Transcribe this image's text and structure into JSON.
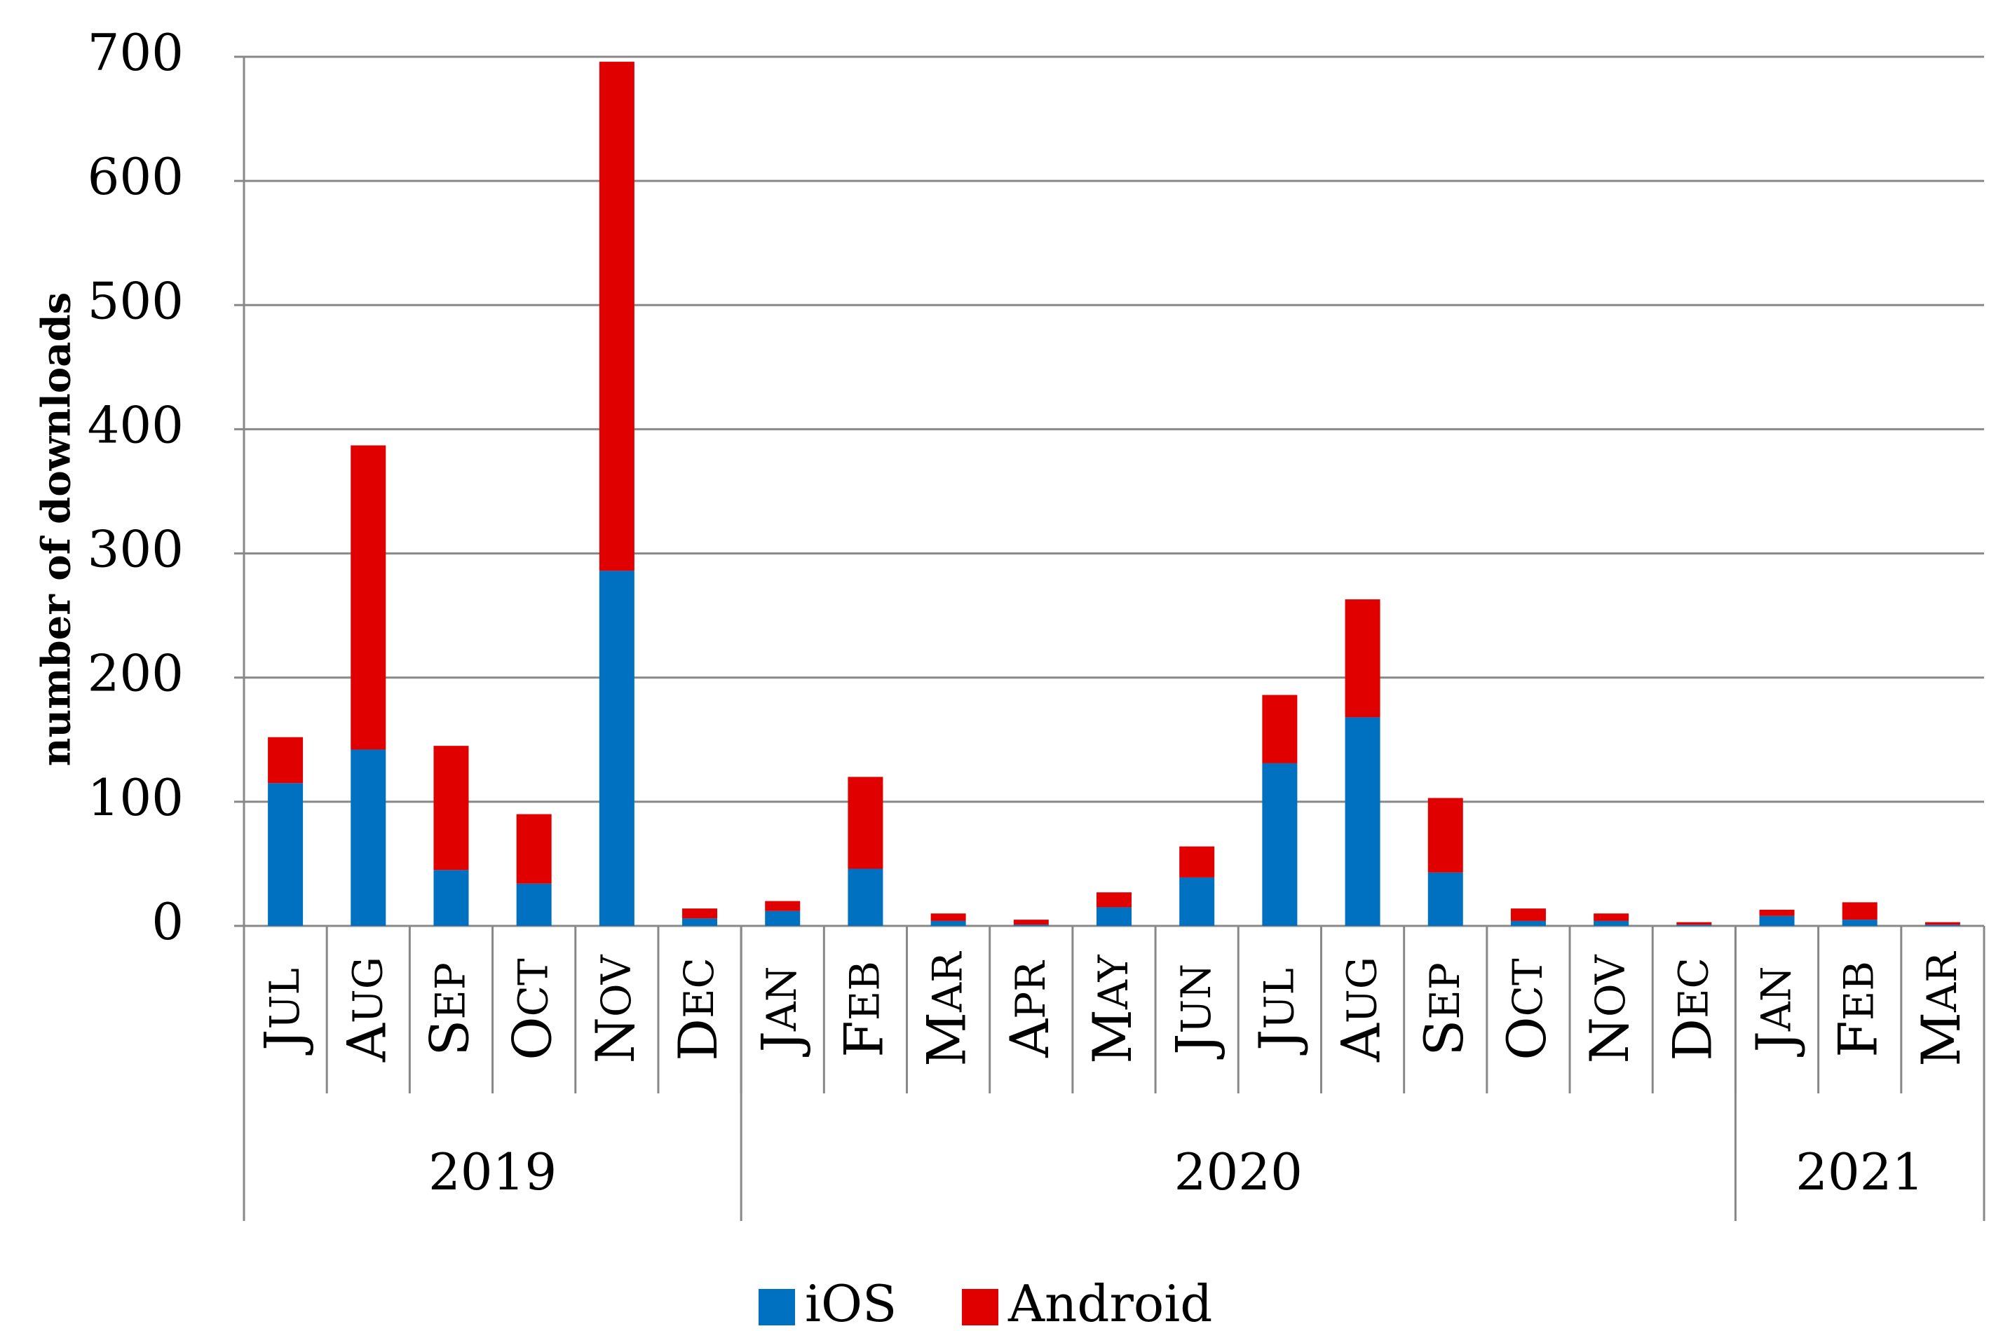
{
  "chart_data": {
    "type": "bar",
    "stacked": true,
    "title": "",
    "xlabel": "",
    "ylabel": "number of downloads",
    "ylim": [
      0,
      700
    ],
    "yticks": [
      0,
      100,
      200,
      300,
      400,
      500,
      600,
      700
    ],
    "ytick_labels": [
      "0",
      "100",
      "200",
      "300",
      "400",
      "500",
      "600",
      "700"
    ],
    "grid": true,
    "categories": [
      "Jul",
      "Aug",
      "Sep",
      "Oct",
      "Nov",
      "Dec",
      "Jan",
      "Feb",
      "Mar",
      "Apr",
      "May",
      "Jun",
      "Jul",
      "Aug",
      "Sep",
      "Oct",
      "Nov",
      "Dec",
      "Jan",
      "Feb",
      "Mar"
    ],
    "year_groups": [
      {
        "label": "2019",
        "count": 6
      },
      {
        "label": "2020",
        "count": 12
      },
      {
        "label": "2021",
        "count": 3
      }
    ],
    "series": [
      {
        "name": "iOS",
        "color": "#0070c0",
        "values": [
          115,
          142,
          45,
          34,
          286,
          6,
          12,
          46,
          4,
          1,
          15,
          39,
          131,
          168,
          43,
          4,
          4,
          1,
          8,
          5,
          1
        ]
      },
      {
        "name": "Android",
        "color": "#e00000",
        "values": [
          37,
          245,
          100,
          56,
          410,
          8,
          8,
          74,
          6,
          4,
          12,
          25,
          55,
          95,
          60,
          10,
          6,
          2,
          5,
          14,
          2
        ]
      }
    ],
    "legend": {
      "position": "bottom-center",
      "entries": [
        "iOS",
        "Android"
      ]
    }
  }
}
